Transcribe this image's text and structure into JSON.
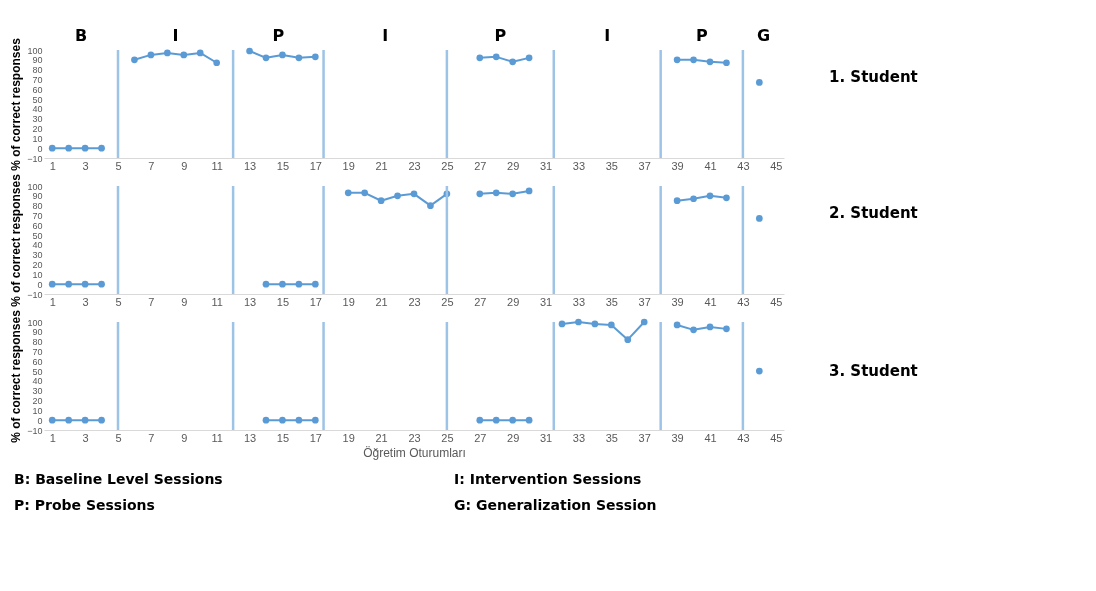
{
  "chart_data": [
    {
      "type": "line",
      "ylabel": "% of correct responses",
      "xlim": [
        0.5,
        45.5
      ],
      "xticks": [
        1,
        3,
        5,
        7,
        9,
        11,
        13,
        15,
        17,
        19,
        21,
        23,
        25,
        27,
        29,
        31,
        33,
        35,
        37,
        39,
        41,
        43,
        45
      ],
      "ylim": [
        -10,
        100
      ],
      "yticks": [
        -10,
        0,
        10,
        20,
        30,
        40,
        50,
        60,
        70,
        80,
        90,
        100
      ],
      "grid": false,
      "legend": false,
      "marker": "circle",
      "x": [
        1,
        2,
        3,
        4,
        5,
        6,
        7,
        8,
        9,
        10,
        11,
        12,
        13,
        14,
        15,
        16,
        17,
        18,
        19,
        20,
        21,
        22,
        23,
        24,
        25,
        26,
        27,
        28,
        29,
        30,
        31,
        32,
        33,
        34,
        35,
        36,
        37,
        38,
        39,
        40,
        41,
        42,
        43,
        44
      ],
      "series": [
        {
          "color": "#5b9bd5",
          "values": [
            0,
            0,
            0,
            0,
            null,
            90,
            95,
            97,
            95,
            97,
            87,
            null,
            99,
            92,
            95,
            92,
            93,
            null,
            null,
            null,
            null,
            null,
            null,
            null,
            null,
            null,
            92,
            93,
            88,
            92,
            null,
            null,
            null,
            null,
            null,
            null,
            null,
            null,
            90,
            90,
            88,
            87,
            null,
            67
          ]
        }
      ],
      "ref_lines": [
        {
          "axis": "x",
          "value": 5,
          "color": "#9dc3e6"
        },
        {
          "axis": "x",
          "value": 12,
          "color": "#9dc3e6"
        },
        {
          "axis": "x",
          "value": 17.5,
          "color": "#9dc3e6"
        },
        {
          "axis": "x",
          "value": 25,
          "color": "#9dc3e6"
        },
        {
          "axis": "x",
          "value": 31.5,
          "color": "#9dc3e6"
        },
        {
          "axis": "x",
          "value": 38,
          "color": "#9dc3e6"
        },
        {
          "axis": "x",
          "value": 43,
          "color": "#9dc3e6"
        }
      ],
      "annotations": [
        "B",
        "I",
        "P",
        "I",
        "P",
        "I",
        "P",
        "G",
        "1. Student"
      ]
    },
    {
      "type": "line",
      "ylabel": "% of correct responses",
      "xlim": [
        0.5,
        45.5
      ],
      "xticks": [
        1,
        3,
        5,
        7,
        9,
        11,
        13,
        15,
        17,
        19,
        21,
        23,
        25,
        27,
        29,
        31,
        33,
        35,
        37,
        39,
        41,
        43,
        45
      ],
      "ylim": [
        -10,
        100
      ],
      "yticks": [
        -10,
        0,
        10,
        20,
        30,
        40,
        50,
        60,
        70,
        80,
        90,
        100
      ],
      "grid": false,
      "legend": false,
      "marker": "circle",
      "x": [
        1,
        2,
        3,
        4,
        5,
        6,
        7,
        8,
        9,
        10,
        11,
        12,
        13,
        14,
        15,
        16,
        17,
        18,
        19,
        20,
        21,
        22,
        23,
        24,
        25,
        26,
        27,
        28,
        29,
        30,
        31,
        32,
        33,
        34,
        35,
        36,
        37,
        38,
        39,
        40,
        41,
        42,
        43,
        44
      ],
      "series": [
        {
          "color": "#5b9bd5",
          "values": [
            0,
            0,
            0,
            0,
            null,
            null,
            null,
            null,
            null,
            null,
            null,
            null,
            null,
            0,
            0,
            0,
            0,
            null,
            93,
            93,
            85,
            90,
            92,
            80,
            92,
            null,
            92,
            93,
            92,
            95,
            null,
            null,
            null,
            null,
            null,
            null,
            null,
            null,
            85,
            87,
            90,
            88,
            null,
            67
          ]
        }
      ],
      "ref_lines": [
        {
          "axis": "x",
          "value": 5,
          "color": "#9dc3e6"
        },
        {
          "axis": "x",
          "value": 12,
          "color": "#9dc3e6"
        },
        {
          "axis": "x",
          "value": 17.5,
          "color": "#9dc3e6"
        },
        {
          "axis": "x",
          "value": 25,
          "color": "#9dc3e6"
        },
        {
          "axis": "x",
          "value": 31.5,
          "color": "#9dc3e6"
        },
        {
          "axis": "x",
          "value": 38,
          "color": "#9dc3e6"
        },
        {
          "axis": "x",
          "value": 43,
          "color": "#9dc3e6"
        }
      ],
      "annotations": [
        "2. Student"
      ]
    },
    {
      "type": "line",
      "ylabel": "% of correct responses",
      "xlabel": "Öğretim Oturumları",
      "xlim": [
        0.5,
        45.5
      ],
      "xticks": [
        1,
        3,
        5,
        7,
        9,
        11,
        13,
        15,
        17,
        19,
        21,
        23,
        25,
        27,
        29,
        31,
        33,
        35,
        37,
        39,
        41,
        43,
        45
      ],
      "ylim": [
        -10,
        100
      ],
      "yticks": [
        -10,
        0,
        10,
        20,
        30,
        40,
        50,
        60,
        70,
        80,
        90,
        100
      ],
      "grid": false,
      "legend": false,
      "marker": "circle",
      "x": [
        1,
        2,
        3,
        4,
        5,
        6,
        7,
        8,
        9,
        10,
        11,
        12,
        13,
        14,
        15,
        16,
        17,
        18,
        19,
        20,
        21,
        22,
        23,
        24,
        25,
        26,
        27,
        28,
        29,
        30,
        31,
        32,
        33,
        34,
        35,
        36,
        37,
        38,
        39,
        40,
        41,
        42,
        43,
        44
      ],
      "series": [
        {
          "color": "#5b9bd5",
          "values": [
            0,
            0,
            0,
            0,
            null,
            null,
            null,
            null,
            null,
            null,
            null,
            null,
            null,
            0,
            0,
            0,
            0,
            null,
            null,
            null,
            null,
            null,
            null,
            null,
            null,
            null,
            0,
            0,
            0,
            0,
            null,
            98,
            100,
            98,
            97,
            82,
            100,
            null,
            97,
            92,
            95,
            93,
            null,
            50
          ]
        }
      ],
      "ref_lines": [
        {
          "axis": "x",
          "value": 5,
          "color": "#9dc3e6"
        },
        {
          "axis": "x",
          "value": 12,
          "color": "#9dc3e6"
        },
        {
          "axis": "x",
          "value": 17.5,
          "color": "#9dc3e6"
        },
        {
          "axis": "x",
          "value": 25,
          "color": "#9dc3e6"
        },
        {
          "axis": "x",
          "value": 31.5,
          "color": "#9dc3e6"
        },
        {
          "axis": "x",
          "value": 38,
          "color": "#9dc3e6"
        },
        {
          "axis": "x",
          "value": 43,
          "color": "#9dc3e6"
        }
      ],
      "annotations": [
        "B: Baseline Level Sessions",
        "I: Intervention Sessions",
        "P: Probe Sessions",
        "G: Generalization Session",
        "3. Student"
      ]
    }
  ]
}
